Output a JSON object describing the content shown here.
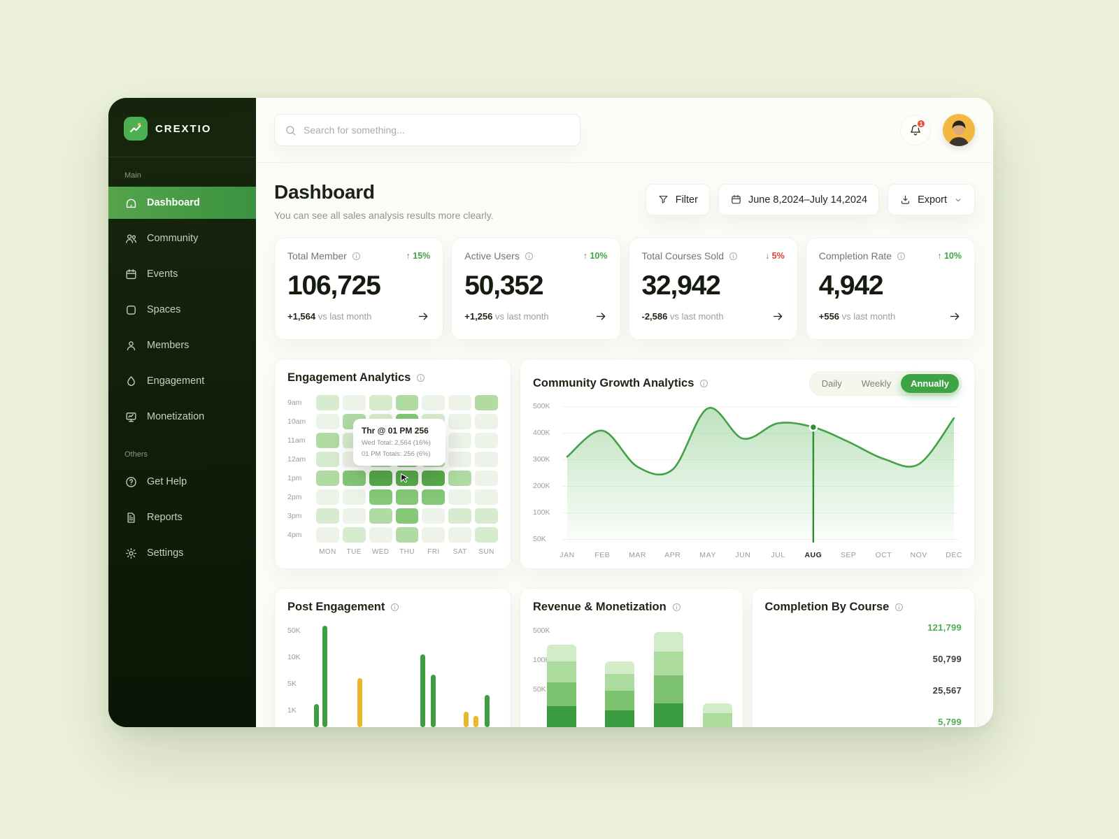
{
  "app": {
    "name": "CREXTIO"
  },
  "topbar": {
    "search_placeholder": "Search for something...",
    "notification_count": "1"
  },
  "sidebar": {
    "sections": [
      {
        "label": "Main",
        "items": [
          {
            "label": "Dashboard",
            "icon": "dashboard-icon",
            "active": true
          },
          {
            "label": "Community",
            "icon": "community-icon",
            "active": false
          },
          {
            "label": "Events",
            "icon": "events-icon",
            "active": false
          },
          {
            "label": "Spaces",
            "icon": "spaces-icon",
            "active": false
          },
          {
            "label": "Members",
            "icon": "members-icon",
            "active": false
          },
          {
            "label": "Engagement",
            "icon": "engagement-icon",
            "active": false
          },
          {
            "label": "Monetization",
            "icon": "monetization-icon",
            "active": false
          }
        ]
      },
      {
        "label": "Others",
        "items": [
          {
            "label": "Get Help",
            "icon": "help-icon",
            "active": false
          },
          {
            "label": "Reports",
            "icon": "reports-icon",
            "active": false
          },
          {
            "label": "Settings",
            "icon": "settings-icon",
            "active": false
          }
        ]
      }
    ]
  },
  "header": {
    "title": "Dashboard",
    "subtitle": "You can see all sales analysis results more clearly.",
    "filter_label": "Filter",
    "date_range": "June 8,2024–July 14,2024",
    "export_label": "Export"
  },
  "stats": [
    {
      "label": "Total Member",
      "value": "106,725",
      "badge": "15%",
      "direction": "up",
      "delta": "+1,564",
      "delta_suffix": " vs last month"
    },
    {
      "label": "Active Users",
      "value": "50,352",
      "badge": "10%",
      "direction": "up",
      "delta": "+1,256",
      "delta_suffix": " vs last month"
    },
    {
      "label": "Total Courses Sold",
      "value": "32,942",
      "badge": "5%",
      "direction": "down",
      "delta": "-2,586",
      "delta_suffix": " vs last month"
    },
    {
      "label": "Completion Rate",
      "value": "4,942",
      "badge": "10%",
      "direction": "up",
      "delta": "+556",
      "delta_suffix": " vs last month"
    }
  ],
  "engagement": {
    "title": "Engagement Analytics",
    "row_labels": [
      "9am",
      "10am",
      "11am",
      "12am",
      "1pm",
      "2pm",
      "3pm",
      "4pm"
    ],
    "col_labels": [
      "MON",
      "TUE",
      "WED",
      "THU",
      "FRI",
      "SAT",
      "SUN"
    ],
    "matrix": [
      [
        1,
        0,
        1,
        2,
        0,
        0,
        2
      ],
      [
        0,
        2,
        1,
        3,
        1,
        0,
        0
      ],
      [
        2,
        1,
        1,
        2,
        1,
        0,
        0
      ],
      [
        1,
        0,
        2,
        3,
        2,
        0,
        0
      ],
      [
        2,
        3,
        4,
        4,
        4,
        2,
        0
      ],
      [
        0,
        0,
        3,
        3,
        3,
        0,
        0
      ],
      [
        1,
        0,
        2,
        3,
        0,
        1,
        1
      ],
      [
        0,
        1,
        0,
        2,
        0,
        0,
        1
      ]
    ],
    "palette": [
      "#eef3e9",
      "#d7ebcf",
      "#b0dba3",
      "#84c878",
      "#58ad4c"
    ],
    "tooltip": {
      "title": "Thr @ 01 PM 256",
      "lines": [
        "Wed Total: 2,564 (16%)",
        "01 PM Totals: 256 (6%)"
      ]
    }
  },
  "growth": {
    "title": "Community Growth Analytics",
    "toggles": [
      "Daily",
      "Weekly",
      "Annually"
    ],
    "active_toggle": "Annually",
    "y_ticks": [
      "500K",
      "400K",
      "300K",
      "200K",
      "100K",
      "50K"
    ],
    "months": [
      "JAN",
      "FEB",
      "MAR",
      "APR",
      "MAY",
      "JUN",
      "JUL",
      "AUG",
      "SEP",
      "OCT",
      "NOV",
      "DEC"
    ],
    "values_k": [
      310,
      408,
      272,
      262,
      492,
      378,
      436,
      421,
      366,
      302,
      282,
      455
    ],
    "highlight_month": "AUG",
    "line_color": "#44a148"
  },
  "post_engagement": {
    "title": "Post Engagement",
    "y_ticks": [
      "50K",
      "10K",
      "5K",
      "1K"
    ],
    "bars": [
      {
        "rel": 0.23,
        "color": "green"
      },
      {
        "rel": 1.0,
        "color": "green"
      },
      {
        "rel": 0.48,
        "color": "yellow"
      },
      {
        "rel": 0.72,
        "color": "green"
      },
      {
        "rel": 0.52,
        "color": "green"
      },
      {
        "rel": 0.15,
        "color": "yellow"
      },
      {
        "rel": 0.11,
        "color": "yellow"
      },
      {
        "rel": 0.32,
        "color": "green"
      }
    ],
    "colors": {
      "green": "#3f9d43",
      "yellow": "#eab62c"
    }
  },
  "revenue": {
    "title": "Revenue & Monetization",
    "y_ticks": [
      "500K",
      "100K",
      "50K"
    ],
    "stacks": [
      {
        "segments": [
          30,
          34,
          30,
          24
        ]
      },
      {
        "segments": [
          24,
          28,
          24,
          18
        ]
      },
      {
        "segments": [
          34,
          40,
          34,
          28
        ]
      },
      {
        "segments": [
          0,
          0,
          20,
          14
        ]
      }
    ],
    "segment_colors": [
      "#3a9a3f",
      "#7cc26f",
      "#abdb9d",
      "#d3ecc8"
    ]
  },
  "completion": {
    "title": "Completion By Course",
    "values": [
      {
        "text": "121,799",
        "color": "#4caf50"
      },
      {
        "text": "50,799",
        "color": "#3a4136"
      },
      {
        "text": "25,567",
        "color": "#3a4136"
      },
      {
        "text": "5,799",
        "color": "#4caf50"
      }
    ]
  }
}
